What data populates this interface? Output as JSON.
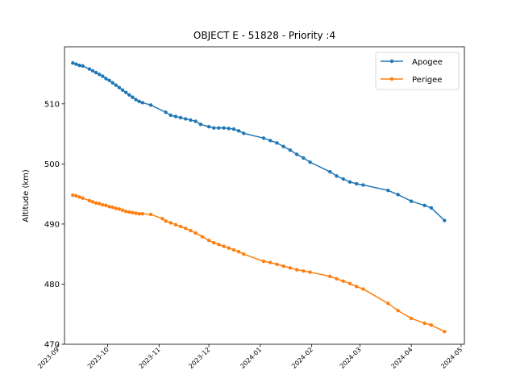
{
  "chart_data": {
    "type": "line",
    "title": "OBJECT E - 51828 - Priority :4",
    "xlabel": "",
    "ylabel": "Altitude (km)",
    "xlim": [
      "2023-09-05",
      "2024-05-03"
    ],
    "ylim": [
      470,
      519.5
    ],
    "grid": false,
    "legend_position": "top-right",
    "x_ticks": [
      "2023-09",
      "2023-10",
      "2023-11",
      "2023-12",
      "2024-01",
      "2024-02",
      "2024-03",
      "2024-04",
      "2024-05"
    ],
    "y_ticks": [
      470,
      480,
      490,
      500,
      510
    ],
    "series": [
      {
        "name": "Apogee",
        "color": "#1f77b4",
        "points": [
          [
            "2023-09-10",
            516.8
          ],
          [
            "2023-09-12",
            516.6
          ],
          [
            "2023-09-14",
            516.4
          ],
          [
            "2023-09-16",
            516.3
          ],
          [
            "2023-09-20",
            515.8
          ],
          [
            "2023-09-22",
            515.5
          ],
          [
            "2023-09-24",
            515.2
          ],
          [
            "2023-09-26",
            514.9
          ],
          [
            "2023-09-28",
            514.6
          ],
          [
            "2023-09-30",
            514.2
          ],
          [
            "2023-10-02",
            513.9
          ],
          [
            "2023-10-04",
            513.5
          ],
          [
            "2023-10-06",
            513.1
          ],
          [
            "2023-10-08",
            512.7
          ],
          [
            "2023-10-10",
            512.3
          ],
          [
            "2023-10-12",
            511.9
          ],
          [
            "2023-10-14",
            511.5
          ],
          [
            "2023-10-16",
            511.1
          ],
          [
            "2023-10-18",
            510.7
          ],
          [
            "2023-10-20",
            510.4
          ],
          [
            "2023-10-22",
            510.2
          ],
          [
            "2023-10-27",
            509.8
          ],
          [
            "2023-11-05",
            508.6
          ],
          [
            "2023-11-08",
            508.1
          ],
          [
            "2023-11-11",
            507.9
          ],
          [
            "2023-11-14",
            507.7
          ],
          [
            "2023-11-17",
            507.5
          ],
          [
            "2023-11-20",
            507.3
          ],
          [
            "2023-11-23",
            507.1
          ],
          [
            "2023-11-26",
            506.6
          ],
          [
            "2023-12-01",
            506.2
          ],
          [
            "2023-12-04",
            506.0
          ],
          [
            "2023-12-07",
            506.0
          ],
          [
            "2023-12-10",
            506.0
          ],
          [
            "2023-12-13",
            505.9
          ],
          [
            "2023-12-16",
            505.8
          ],
          [
            "2023-12-19",
            505.5
          ],
          [
            "2023-12-22",
            505.1
          ],
          [
            "2024-01-03",
            504.3
          ],
          [
            "2024-01-07",
            503.9
          ],
          [
            "2024-01-11",
            503.5
          ],
          [
            "2024-01-15",
            502.9
          ],
          [
            "2024-01-19",
            502.3
          ],
          [
            "2024-01-23",
            501.6
          ],
          [
            "2024-01-27",
            501.0
          ],
          [
            "2024-01-31",
            500.3
          ],
          [
            "2024-02-12",
            498.7
          ],
          [
            "2024-02-16",
            498.0
          ],
          [
            "2024-02-20",
            497.5
          ],
          [
            "2024-02-24",
            497.0
          ],
          [
            "2024-02-28",
            496.7
          ],
          [
            "2024-03-03",
            496.5
          ],
          [
            "2024-03-18",
            495.6
          ],
          [
            "2024-03-24",
            494.9
          ],
          [
            "2024-04-01",
            493.8
          ],
          [
            "2024-04-09",
            493.1
          ],
          [
            "2024-04-13",
            492.7
          ],
          [
            "2024-04-21",
            490.6
          ]
        ]
      },
      {
        "name": "Perigee",
        "color": "#ff7f0e",
        "points": [
          [
            "2023-09-10",
            494.8
          ],
          [
            "2023-09-12",
            494.7
          ],
          [
            "2023-09-14",
            494.5
          ],
          [
            "2023-09-16",
            494.3
          ],
          [
            "2023-09-20",
            493.9
          ],
          [
            "2023-09-22",
            493.7
          ],
          [
            "2023-09-24",
            493.5
          ],
          [
            "2023-09-26",
            493.4
          ],
          [
            "2023-09-28",
            493.2
          ],
          [
            "2023-09-30",
            493.1
          ],
          [
            "2023-10-02",
            492.9
          ],
          [
            "2023-10-04",
            492.8
          ],
          [
            "2023-10-06",
            492.6
          ],
          [
            "2023-10-08",
            492.5
          ],
          [
            "2023-10-10",
            492.3
          ],
          [
            "2023-10-12",
            492.1
          ],
          [
            "2023-10-14",
            492.0
          ],
          [
            "2023-10-16",
            491.9
          ],
          [
            "2023-10-18",
            491.8
          ],
          [
            "2023-10-20",
            491.7
          ],
          [
            "2023-10-22",
            491.7
          ],
          [
            "2023-10-27",
            491.6
          ],
          [
            "2023-11-03",
            490.9
          ],
          [
            "2023-11-05",
            490.5
          ],
          [
            "2023-11-08",
            490.2
          ],
          [
            "2023-11-11",
            489.9
          ],
          [
            "2023-11-14",
            489.6
          ],
          [
            "2023-11-17",
            489.3
          ],
          [
            "2023-11-20",
            488.9
          ],
          [
            "2023-11-23",
            488.5
          ],
          [
            "2023-11-27",
            487.9
          ],
          [
            "2023-12-01",
            487.3
          ],
          [
            "2023-12-04",
            486.9
          ],
          [
            "2023-12-07",
            486.6
          ],
          [
            "2023-12-10",
            486.3
          ],
          [
            "2023-12-13",
            486.0
          ],
          [
            "2023-12-16",
            485.7
          ],
          [
            "2023-12-19",
            485.4
          ],
          [
            "2023-12-22",
            485.0
          ],
          [
            "2024-01-03",
            483.8
          ],
          [
            "2024-01-07",
            483.6
          ],
          [
            "2024-01-11",
            483.3
          ],
          [
            "2024-01-15",
            483.0
          ],
          [
            "2024-01-19",
            482.7
          ],
          [
            "2024-01-23",
            482.4
          ],
          [
            "2024-01-27",
            482.2
          ],
          [
            "2024-01-31",
            482.0
          ],
          [
            "2024-02-12",
            481.3
          ],
          [
            "2024-02-16",
            480.9
          ],
          [
            "2024-02-20",
            480.5
          ],
          [
            "2024-02-24",
            480.1
          ],
          [
            "2024-02-28",
            479.6
          ],
          [
            "2024-03-03",
            479.2
          ],
          [
            "2024-03-18",
            476.8
          ],
          [
            "2024-03-24",
            475.6
          ],
          [
            "2024-04-01",
            474.3
          ],
          [
            "2024-04-09",
            473.5
          ],
          [
            "2024-04-13",
            473.2
          ],
          [
            "2024-04-21",
            472.1
          ]
        ]
      }
    ]
  }
}
